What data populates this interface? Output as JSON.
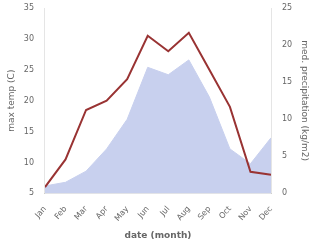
{
  "chart_data": {
    "type": "line",
    "categories": [
      "Jan",
      "Feb",
      "Mar",
      "Apr",
      "May",
      "Jun",
      "Jul",
      "Aug",
      "Sep",
      "Oct",
      "Nov",
      "Dec"
    ],
    "series": [
      {
        "type": "area",
        "axis": "y2",
        "color": "#c8d0ee",
        "values": [
          1.0,
          1.5,
          3.0,
          6.0,
          10.0,
          17.0,
          16.0,
          18.0,
          13.0,
          6.0,
          4.0,
          7.5
        ]
      },
      {
        "type": "line",
        "color": "#993333",
        "values": [
          6.0,
          10.5,
          18.5,
          20.0,
          23.5,
          30.5,
          28.0,
          31.0,
          25.0,
          19.0,
          8.5,
          8.0
        ]
      }
    ],
    "xlabel": "date (month)",
    "ylabel": "max temp (C)",
    "y2label": "med. precipitation (kg/m2)",
    "ylim": [
      5,
      35
    ],
    "yticks": [
      5,
      10,
      15,
      20,
      25,
      30,
      35
    ],
    "y2lim": [
      0,
      25
    ],
    "y2ticks": [
      0,
      5,
      10,
      15,
      20,
      25
    ],
    "grid": false
  }
}
